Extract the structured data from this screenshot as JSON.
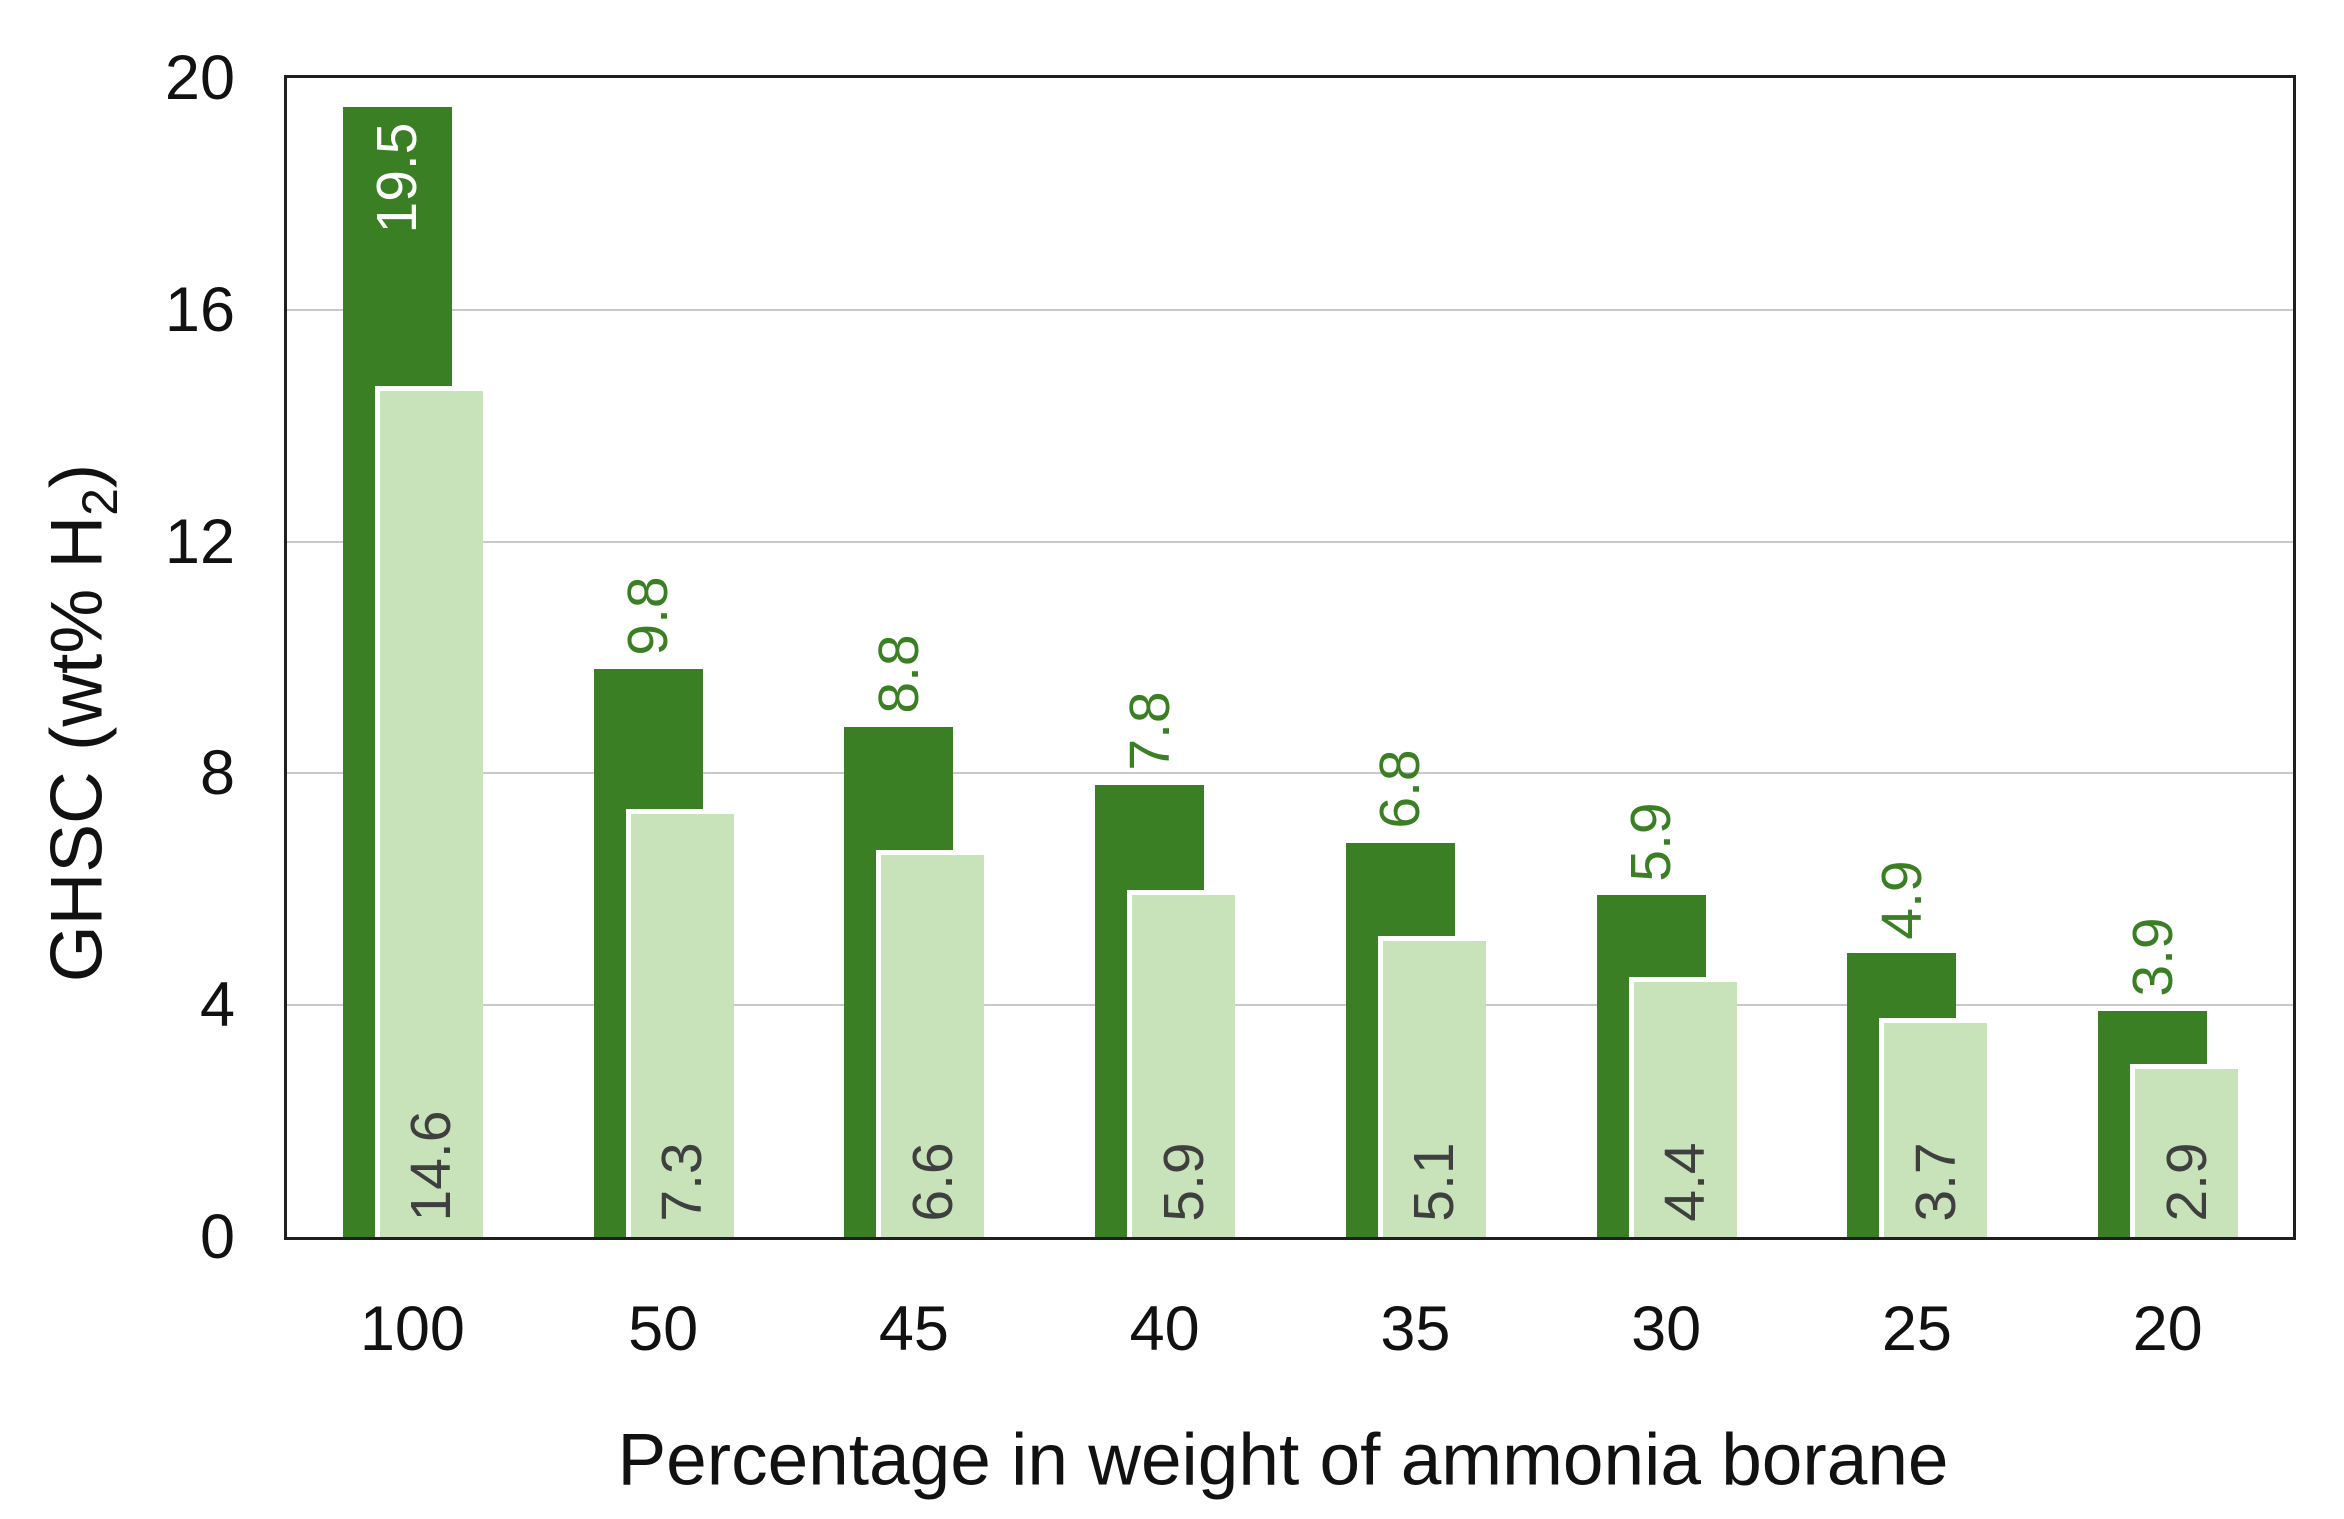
{
  "chart_data": {
    "type": "bar",
    "categories": [
      "100",
      "50",
      "45",
      "40",
      "35",
      "30",
      "25",
      "20"
    ],
    "series": [
      {
        "name": "dark_green_bars",
        "color": "#3a7f24",
        "label_color": "#3a7f24",
        "first_label_inside": true,
        "first_label_color": "#ffffff",
        "values": [
          19.5,
          9.8,
          8.8,
          7.8,
          6.8,
          5.9,
          4.9,
          3.9
        ],
        "labels": [
          "19.5",
          "9.8",
          "8.8",
          "7.8",
          "6.8",
          "5.9",
          "4.9",
          "3.9"
        ]
      },
      {
        "name": "light_green_bars",
        "color": "#c8e3ba",
        "label_color": "#3f3f3f",
        "values": [
          14.6,
          7.3,
          6.6,
          5.9,
          5.1,
          4.4,
          3.7,
          2.9
        ],
        "labels": [
          "14.6",
          "7.3",
          "6.6",
          "5.9",
          "5.1",
          "4.4",
          "3.7",
          "2.9"
        ]
      }
    ],
    "title": "",
    "xlabel": "Percentage in weight of ammonia borane",
    "ylabel": "GHSC (wt% H₂)",
    "ylabel_parts": {
      "pre": "GHSC (wt% H",
      "sub": "2",
      "post": ")"
    },
    "ylim": [
      0,
      20
    ],
    "yticks": [
      0,
      4,
      8,
      12,
      16,
      20
    ],
    "grid": true,
    "legend": "none",
    "label_rotation_deg": 90,
    "axis_color": "#1f1f1f",
    "grid_color": "#c9c9c9"
  }
}
